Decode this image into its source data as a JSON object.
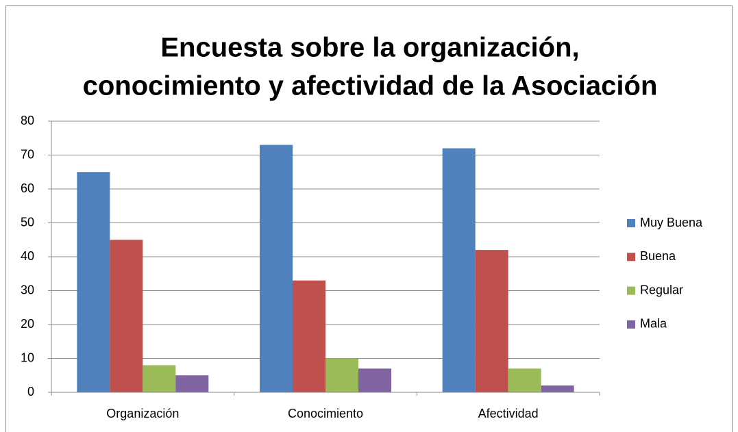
{
  "chart_data": {
    "type": "bar",
    "title": [
      "Encuesta sobre la organización,",
      "conocimiento y afectividad de la Asociación"
    ],
    "categories": [
      "Organización",
      "Conocimiento",
      "Afectividad"
    ],
    "series": [
      {
        "name": "Muy Buena",
        "color": "#4f81bd",
        "values": [
          65,
          73,
          72
        ]
      },
      {
        "name": "Buena",
        "color": "#c0504d",
        "values": [
          45,
          33,
          42
        ]
      },
      {
        "name": "Regular",
        "color": "#9bbb59",
        "values": [
          8,
          10,
          7
        ]
      },
      {
        "name": "Mala",
        "color": "#8064a2",
        "values": [
          5,
          7,
          2
        ]
      }
    ],
    "ylim": [
      0,
      80
    ],
    "yticks": [
      0,
      10,
      20,
      30,
      40,
      50,
      60,
      70,
      80
    ],
    "grid": true,
    "legend": "right"
  }
}
